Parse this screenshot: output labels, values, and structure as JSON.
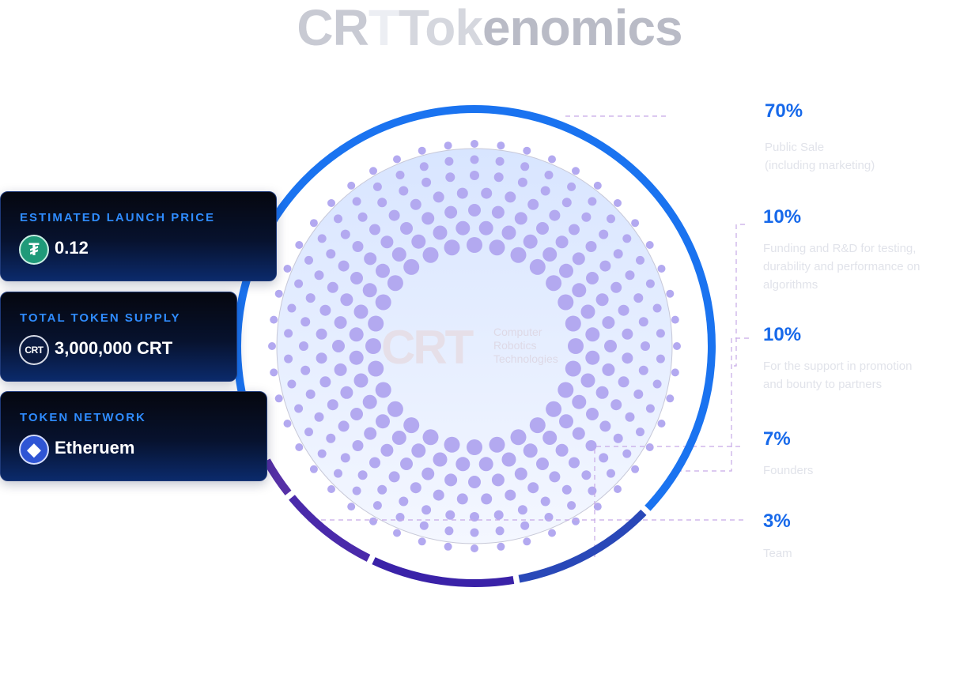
{
  "title": {
    "part1": "CR",
    "part2": "T",
    "part3": "Tok",
    "part4": "enomics"
  },
  "center_logo": {
    "mark": "CRT",
    "subtitle": "Computer\nRobotics\nTechnologies"
  },
  "cards": [
    {
      "label": "ESTIMATED LAUNCH PRICE",
      "value": "0.12",
      "icon": "tether-icon",
      "icon_glyph": "₮"
    },
    {
      "label": "TOTAL TOKEN SUPPLY",
      "value": "3,000,000 CRT",
      "icon": "crt-icon",
      "icon_glyph": "CRT"
    },
    {
      "label": "TOKEN NETWORK",
      "value": "Etheruem",
      "icon": "ethereum-icon",
      "icon_glyph": "◆"
    }
  ],
  "chart_data": {
    "type": "pie",
    "variant": "donut",
    "slices": [
      {
        "value": 70,
        "label": "70%",
        "description": "Public Sale\n(including marketing)",
        "color": "#1a73f0"
      },
      {
        "value": 10,
        "label": "10%",
        "description": "Funding and R&D for testing,\ndurability and performance on\nalgorithms",
        "color": "#2948b8"
      },
      {
        "value": 10,
        "label": "10%",
        "description": "For the support in promotion\nand bounty to partners",
        "color": "#3a22a8"
      },
      {
        "value": 7,
        "label": "7%",
        "description": "Founders",
        "color": "#4a2aaa"
      },
      {
        "value": 3,
        "label": "3%",
        "description": "Team",
        "color": "#5630a6"
      }
    ],
    "colors": {
      "dots": "#b3a9f0",
      "inner_fill_top": "#d8e5ff",
      "inner_fill_bottom": "#f4f7ff",
      "leader_lines": "#c6a9e6"
    }
  }
}
